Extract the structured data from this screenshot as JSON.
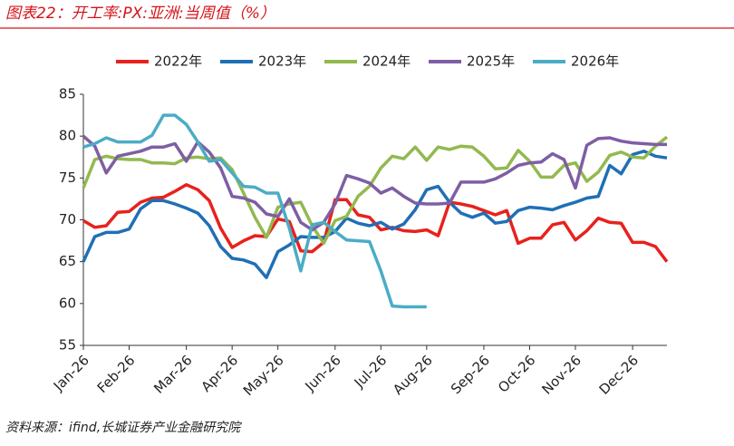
{
  "chart_data": {
    "type": "line",
    "title": "图表22：开工率:PX:亚洲:当周值（%）",
    "source": "资料来源：ifind,长城证券产业金融研究院",
    "categories": [
      "Jan-26",
      null,
      null,
      null,
      "Feb-26",
      null,
      null,
      null,
      null,
      "Mar-26",
      null,
      null,
      null,
      "Apr-26",
      null,
      null,
      null,
      "May-26",
      null,
      null,
      null,
      null,
      "Jun-26",
      null,
      null,
      null,
      "Jul-26",
      null,
      null,
      null,
      "Aug-26",
      null,
      null,
      null,
      null,
      "Sep-26",
      null,
      null,
      null,
      "Oct-26",
      null,
      null,
      null,
      "Nov-26",
      null,
      null,
      null,
      null,
      "Dec-26",
      null,
      null,
      null
    ],
    "ylim": [
      55,
      85
    ],
    "yticks": [
      55,
      60,
      65,
      70,
      75,
      80,
      85
    ],
    "grid": false,
    "series": [
      {
        "name": "2022年",
        "color": "#e8211c",
        "values": [
          69.9,
          69.1,
          69.3,
          70.9,
          71.0,
          72.1,
          72.6,
          72.7,
          73.4,
          74.2,
          73.6,
          72.3,
          69.0,
          66.7,
          67.5,
          68.1,
          68.0,
          70.1,
          69.8,
          66.3,
          66.2,
          67.3,
          72.4,
          72.4,
          70.6,
          70.3,
          68.8,
          69.1,
          68.7,
          68.6,
          68.8,
          68.1,
          72.1,
          71.9,
          71.6,
          71.1,
          70.6,
          71.1,
          67.2,
          67.8,
          67.8,
          69.4,
          69.7,
          67.6,
          68.7,
          70.2,
          69.7,
          69.6,
          67.3,
          67.3,
          66.8,
          65.0
        ]
      },
      {
        "name": "2023年",
        "color": "#1f6fb5",
        "values": [
          65.0,
          68.0,
          68.5,
          68.5,
          68.9,
          71.3,
          72.3,
          72.3,
          71.9,
          71.4,
          70.8,
          69.3,
          66.8,
          65.4,
          65.2,
          64.7,
          63.1,
          66.2,
          67.0,
          68.0,
          67.9,
          67.9,
          68.6,
          70.2,
          69.6,
          69.3,
          69.7,
          68.9,
          69.5,
          71.2,
          73.6,
          74.0,
          72.1,
          70.8,
          70.3,
          70.8,
          69.6,
          69.8,
          71.1,
          71.5,
          71.4,
          71.2,
          71.7,
          72.1,
          72.6,
          72.8,
          76.5,
          75.5,
          77.8,
          78.2,
          77.6,
          77.4
        ]
      },
      {
        "name": "2024年",
        "color": "#92b94f",
        "values": [
          73.8,
          77.2,
          77.6,
          77.3,
          77.2,
          77.2,
          76.8,
          76.8,
          76.7,
          77.4,
          77.5,
          77.3,
          77.4,
          76.0,
          73.2,
          70.3,
          67.9,
          71.5,
          71.9,
          72.1,
          69.3,
          67.2,
          69.9,
          70.4,
          72.8,
          74.0,
          76.2,
          77.6,
          77.3,
          78.7,
          77.1,
          78.7,
          78.4,
          78.8,
          78.7,
          77.6,
          76.1,
          76.2,
          78.3,
          77.0,
          75.1,
          75.1,
          76.5,
          76.8,
          74.6,
          75.7,
          77.7,
          78.1,
          77.5,
          77.4,
          78.8,
          79.9
        ]
      },
      {
        "name": "2025年",
        "color": "#7e5ea4",
        "values": [
          80.0,
          78.8,
          75.6,
          77.6,
          77.9,
          78.2,
          78.7,
          78.7,
          79.1,
          77.0,
          79.3,
          78.1,
          76.2,
          72.8,
          72.6,
          72.1,
          70.7,
          70.4,
          72.5,
          69.7,
          68.8,
          69.7,
          71.9,
          75.3,
          74.9,
          74.4,
          73.2,
          73.8,
          72.8,
          72.0,
          71.9,
          71.9,
          72.0,
          74.5,
          74.5,
          74.5,
          74.9,
          75.6,
          76.5,
          76.8,
          76.9,
          77.9,
          77.2,
          73.8,
          78.9,
          79.7,
          79.8,
          79.4,
          79.2,
          79.1,
          79.0,
          79.0
        ]
      },
      {
        "name": "2026年",
        "color": "#4bacc6",
        "values": [
          78.7,
          79.1,
          79.8,
          79.3,
          79.3,
          79.3,
          80.1,
          82.5,
          82.5,
          81.4,
          79.3,
          77.0,
          77.2,
          75.6,
          74.0,
          73.9,
          73.2,
          73.2,
          69.0,
          63.9,
          69.4,
          69.7,
          68.6,
          67.6,
          67.5,
          67.4,
          63.9,
          59.7,
          59.6,
          59.6,
          59.6,
          null,
          null,
          null,
          null,
          null,
          null,
          null,
          null,
          null,
          null,
          null,
          null,
          null,
          null,
          null,
          null,
          null,
          null,
          null,
          null,
          null
        ]
      }
    ]
  }
}
